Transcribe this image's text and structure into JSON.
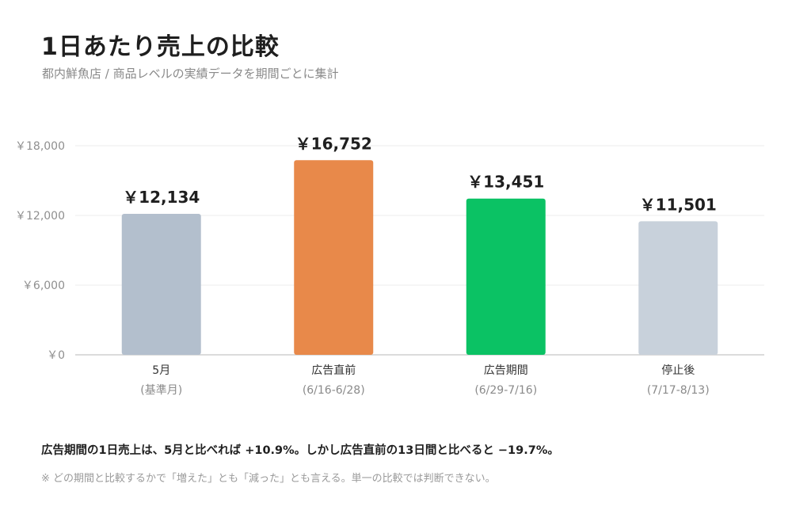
{
  "header": {
    "title": "1日あたり売上の比較",
    "subtitle": "都内鮮魚店 / 商品レベルの実績データを期間ごとに集計"
  },
  "chart_data": {
    "type": "bar",
    "categories": [
      "5月",
      "広告直前",
      "広告期間",
      "停止後"
    ],
    "sublabels": [
      "(基準月)",
      "(6/16-6/28)",
      "(6/29-7/16)",
      "(7/17-8/13)"
    ],
    "values": [
      12134,
      16752,
      13451,
      11501
    ],
    "value_labels": [
      "￥12,134",
      "￥16,752",
      "￥13,451",
      "￥11,501"
    ],
    "bar_colors": [
      "#b3bfcd",
      "#e8894a",
      "#0bc264",
      "#c8d1db"
    ],
    "ylim": [
      0,
      18000
    ],
    "yticks": [
      0,
      6000,
      12000,
      18000
    ],
    "ytick_labels": [
      "￥0",
      "￥6,000",
      "￥12,000",
      "￥18,000"
    ],
    "grid": true,
    "grid_color": "#ececec",
    "axis_color": "#cfcfcf"
  },
  "notes": {
    "main": "広告期間の1日売上は、5月と比べれば +10.9%。しかし広告直前の13日間と比べると −19.7%。",
    "sub": "※ どの期間と比較するかで「増えた」とも「減った」とも言える。単一の比較では判断できない。"
  }
}
